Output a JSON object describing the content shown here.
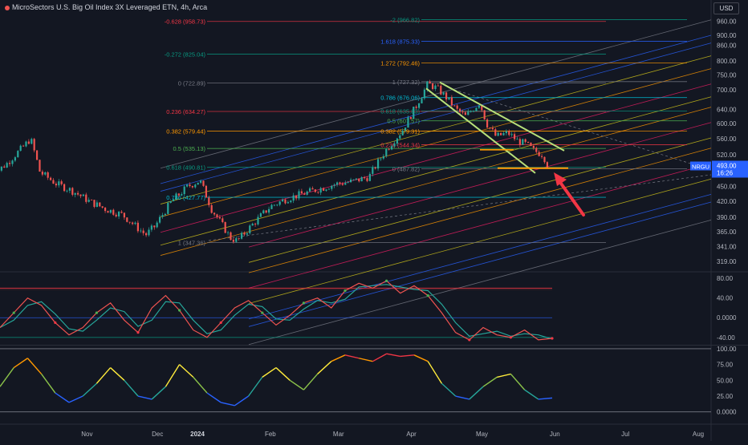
{
  "header": {
    "title": "MicroSectors U.S. Big Oil Index 3X Leveraged ETN, 4h, Arca",
    "currency_button": "USD"
  },
  "price_badge": {
    "ticker": "NRGU",
    "price": "493.00",
    "countdown": "16:26",
    "color": "#2962ff"
  },
  "colors": {
    "background": "#131722",
    "up": "#26a69a",
    "down": "#ef5350",
    "accent": "#f23645"
  },
  "chart_data": [
    {
      "type": "candlestick",
      "panel": "price",
      "x_ticks": [
        "Nov",
        "Dec",
        "2024",
        "Feb",
        "Mar",
        "Apr",
        "May",
        "Jun",
        "Jul",
        "Aug"
      ],
      "y_ticks": [
        "960.00",
        "900.00",
        "860.00",
        "800.00",
        "750.00",
        "700.00",
        "640.00",
        "600.00",
        "560.00",
        "520.00",
        "493.00",
        "450.00",
        "420.00",
        "390.00",
        "365.00",
        "341.00",
        "319.00"
      ],
      "y_tick_values": [
        960,
        900,
        860,
        800,
        750,
        700,
        640,
        600,
        560,
        520,
        493,
        450,
        420,
        390,
        365,
        341,
        319
      ],
      "ylim": [
        305,
        990
      ],
      "scale": "log",
      "close_path": [
        [
          "2023-10-05",
          470
        ],
        [
          "2023-10-12",
          500
        ],
        [
          "2023-10-19",
          540
        ],
        [
          "2023-10-22",
          560
        ],
        [
          "2023-10-26",
          480
        ],
        [
          "2023-11-02",
          455
        ],
        [
          "2023-11-09",
          440
        ],
        [
          "2023-11-16",
          420
        ],
        [
          "2023-11-23",
          405
        ],
        [
          "2023-11-30",
          395
        ],
        [
          "2023-12-07",
          370
        ],
        [
          "2023-12-10",
          360
        ],
        [
          "2023-12-14",
          375
        ],
        [
          "2023-12-21",
          420
        ],
        [
          "2023-12-28",
          450
        ],
        [
          "2024-01-02",
          462
        ],
        [
          "2024-01-07",
          405
        ],
        [
          "2024-01-11",
          380
        ],
        [
          "2024-01-15",
          355
        ],
        [
          "2024-01-18",
          350
        ],
        [
          "2024-01-25",
          380
        ],
        [
          "2024-02-01",
          410
        ],
        [
          "2024-02-08",
          425
        ],
        [
          "2024-02-15",
          435
        ],
        [
          "2024-02-22",
          445
        ],
        [
          "2024-02-29",
          455
        ],
        [
          "2024-03-07",
          460
        ],
        [
          "2024-03-14",
          470
        ],
        [
          "2024-03-21",
          530
        ],
        [
          "2024-03-28",
          580
        ],
        [
          "2024-04-03",
          650
        ],
        [
          "2024-04-08",
          720
        ],
        [
          "2024-04-12",
          705
        ],
        [
          "2024-04-16",
          675
        ],
        [
          "2024-04-20",
          640
        ],
        [
          "2024-04-24",
          620
        ],
        [
          "2024-04-30",
          660
        ],
        [
          "2024-05-03",
          600
        ],
        [
          "2024-05-07",
          565
        ],
        [
          "2024-05-12",
          575
        ],
        [
          "2024-05-16",
          555
        ],
        [
          "2024-05-20",
          545
        ],
        [
          "2024-05-23",
          530
        ],
        [
          "2024-05-27",
          520
        ],
        [
          "2024-05-29",
          493
        ]
      ],
      "fibonacci_left": {
        "levels": [
          "-0.628 (958.73)",
          "-0.272 (825.04)",
          "0 (722.89)",
          "0.236 (634.27)",
          "0.382 (579.44)",
          "0.5 (535.13)",
          "0.618 (490.81)",
          "0.786 (427.77)",
          "1 (347.36)"
        ],
        "prices": [
          958.73,
          825.04,
          722.89,
          634.27,
          579.44,
          535.13,
          490.81,
          427.77,
          347.36
        ],
        "colors": [
          "#f23645",
          "#089981",
          "#787b86",
          "#f23645",
          "#ff9800",
          "#4caf50",
          "#089981",
          "#00bcd4",
          "#787b86"
        ]
      },
      "fibonacci_right": {
        "levels": [
          "-2 (966.82)",
          "1.618 (875.33)",
          "1.272 (792.46)",
          "1 (727.32)",
          "0.786 (676.06)",
          "0.618 (635.83)",
          "0.5 (607.57)",
          "0.382 (579.31)",
          "0.236 (544.34)",
          "0 (487.82)"
        ],
        "prices": [
          966.82,
          875.33,
          792.46,
          727.32,
          676.06,
          635.83,
          607.57,
          579.31,
          544.34,
          487.82
        ],
        "colors": [
          "#089981",
          "#2962ff",
          "#ff9800",
          "#787b86",
          "#00bcd4",
          "#089981",
          "#4caf50",
          "#ff9800",
          "#f23645",
          "#787b86"
        ]
      }
    },
    {
      "type": "line",
      "panel": "oscillator",
      "y_ticks": [
        "80.00",
        "40.00",
        "0.0000",
        "-40.00"
      ],
      "y_tick_values": [
        80,
        40,
        0,
        -40
      ],
      "ylim": [
        -55,
        90
      ],
      "reference_lines": [
        60,
        0,
        -40
      ],
      "series": [
        {
          "color": "#ef5350",
          "values": [
            -20,
            10,
            40,
            25,
            -10,
            -35,
            -20,
            10,
            30,
            -5,
            -30,
            20,
            45,
            15,
            -25,
            -40,
            -10,
            20,
            35,
            10,
            -15,
            5,
            30,
            40,
            20,
            55,
            70,
            60,
            75,
            50,
            65,
            45,
            10,
            -30,
            -45,
            -20,
            -35,
            -40,
            -25,
            -45,
            -42
          ]
        }
      ]
    },
    {
      "type": "line",
      "panel": "stochastic",
      "y_ticks": [
        "100.00",
        "75.00",
        "50.00",
        "25.00",
        "0.0000"
      ],
      "y_tick_values": [
        100,
        75,
        50,
        25,
        0
      ],
      "ylim": [
        -8,
        105
      ],
      "series": [
        {
          "color": "gradient",
          "values": [
            40,
            70,
            85,
            60,
            30,
            15,
            25,
            45,
            70,
            50,
            25,
            20,
            40,
            75,
            55,
            30,
            15,
            10,
            25,
            55,
            70,
            50,
            35,
            60,
            80,
            90,
            85,
            80,
            92,
            88,
            90,
            80,
            45,
            25,
            20,
            40,
            55,
            60,
            35,
            20,
            22
          ]
        }
      ]
    }
  ]
}
